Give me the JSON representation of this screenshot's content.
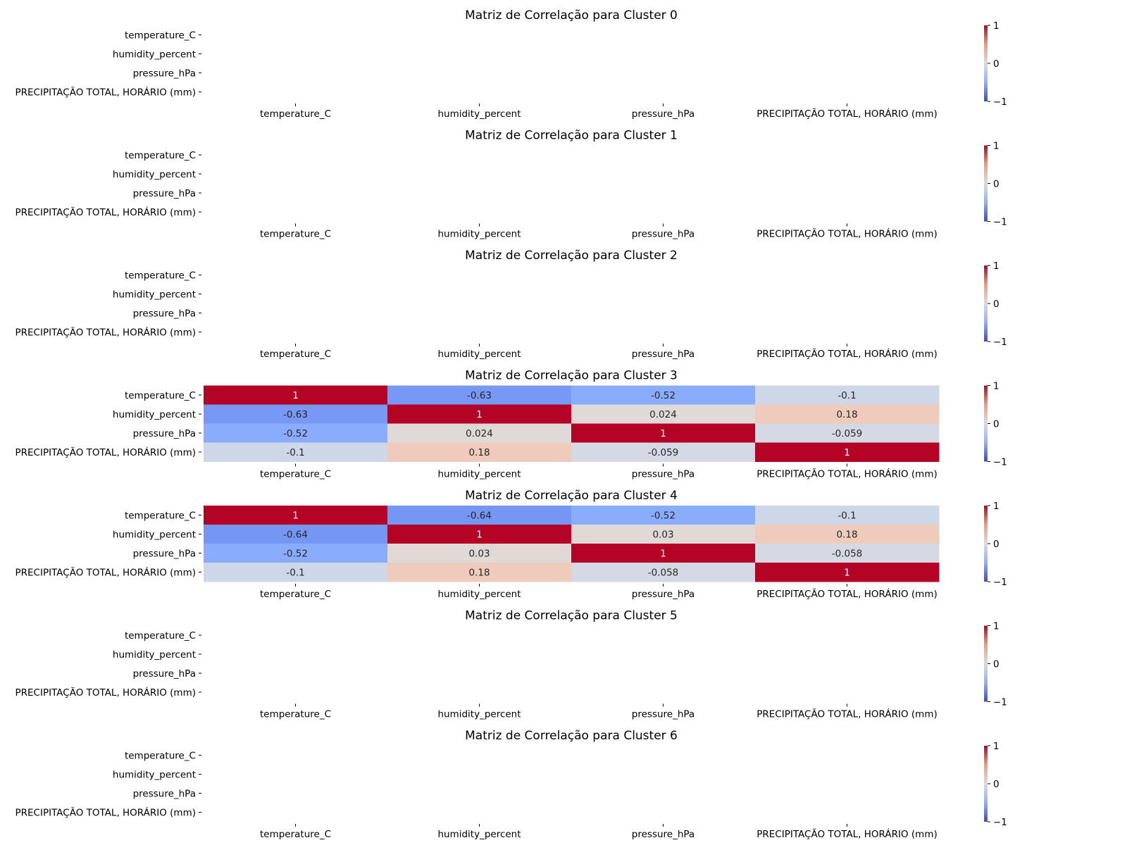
{
  "chart_data": {
    "type": "heatmap",
    "labels": [
      "temperature_C",
      "humidity_percent",
      "pressure_hPa",
      "PRECIPITAÇÃO TOTAL, HORÁRIO (mm)"
    ],
    "value_range": [
      -1,
      1
    ],
    "colorbar_ticks": [
      "1",
      "0",
      "−1"
    ],
    "colormap": [
      "#3b4cc0",
      "#dddcdc",
      "#b40426"
    ],
    "panels": [
      {
        "title": "Matriz de Correlação para Cluster 0",
        "matrix": null
      },
      {
        "title": "Matriz de Correlação para Cluster 1",
        "matrix": null
      },
      {
        "title": "Matriz de Correlação para Cluster 2",
        "matrix": null
      },
      {
        "title": "Matriz de Correlação para Cluster 3",
        "matrix": [
          [
            1,
            -0.63,
            -0.52,
            -0.1
          ],
          [
            -0.63,
            1,
            0.024,
            0.18
          ],
          [
            -0.52,
            0.024,
            1,
            -0.059
          ],
          [
            -0.1,
            0.18,
            -0.059,
            1
          ]
        ],
        "annotations": [
          [
            "1",
            "-0.63",
            "-0.52",
            "-0.1"
          ],
          [
            "-0.63",
            "1",
            "0.024",
            "0.18"
          ],
          [
            "-0.52",
            "0.024",
            "1",
            "-0.059"
          ],
          [
            "-0.1",
            "0.18",
            "-0.059",
            "1"
          ]
        ]
      },
      {
        "title": "Matriz de Correlação para Cluster 4",
        "matrix": [
          [
            1,
            -0.64,
            -0.52,
            -0.1
          ],
          [
            -0.64,
            1,
            0.03,
            0.18
          ],
          [
            -0.52,
            0.03,
            1,
            -0.058
          ],
          [
            -0.1,
            0.18,
            -0.058,
            1
          ]
        ],
        "annotations": [
          [
            "1",
            "-0.64",
            "-0.52",
            "-0.1"
          ],
          [
            "-0.64",
            "1",
            "0.03",
            "0.18"
          ],
          [
            "-0.52",
            "0.03",
            "1",
            "-0.058"
          ],
          [
            "-0.1",
            "0.18",
            "-0.058",
            "1"
          ]
        ]
      },
      {
        "title": "Matriz de Correlação para Cluster 5",
        "matrix": null
      },
      {
        "title": "Matriz de Correlação para Cluster 6",
        "matrix": null
      }
    ]
  }
}
